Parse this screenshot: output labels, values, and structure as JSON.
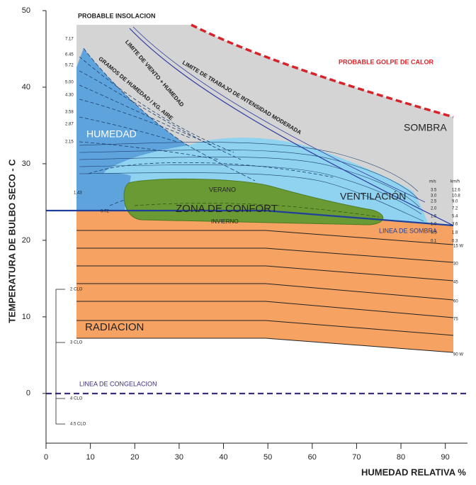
{
  "chart_data": {
    "type": "bioclimatic",
    "xlabel": "HUMEDAD RELATIVA %",
    "ylabel": "TEMPERATURA DE BULBO SECO - C",
    "xlim": [
      0,
      95
    ],
    "xticks": [
      0,
      10,
      20,
      30,
      40,
      50,
      60,
      70,
      80,
      90
    ],
    "ylim": [
      -6.5,
      50
    ],
    "yticks": [
      0,
      10,
      20,
      30,
      40,
      50
    ],
    "annotations": {
      "insolacion": "PROBABLE INSOLACION",
      "golpe_calor": "PROBABLE GOLPE DE CALOR",
      "limite_viento": "LIMITE DE VIENTO + HUMEDAD",
      "limite_trabajo": "LIMITE DE TRABAJO DE INTENSIDAD MODERADA",
      "gramos": "GRAMOS DE HUMEDAD / KG. AIRE",
      "humedad": "HUMEDAD",
      "sombra": "SOMBRA",
      "verano": "VERANO",
      "confort": "ZONA DE CONFORT",
      "invierno": "INVIERNO",
      "ventilacion": "VENTILACIÓN",
      "linea_sombra": "LINEA DE SOMBRA",
      "radiacion": "RADIACION",
      "congelacion": "LINEA DE CONGELACION"
    },
    "humidity_labels": [
      "7.17",
      "6.45",
      "5.72",
      "5.00",
      "4.30",
      "3.58",
      "2.87",
      "2.15",
      "1.43",
      "0.72"
    ],
    "wind_headers": [
      "m/s",
      "km/h"
    ],
    "wind_ms": [
      "3.5",
      "3.0",
      "2.5",
      "2.0",
      "1.5",
      "1.0",
      "0.5",
      "0.1"
    ],
    "wind_kmh": [
      "12.6",
      "10.8",
      "9.0",
      "7.2",
      "5.4",
      "3.6",
      "1.8",
      "0.3"
    ],
    "radiation_labels": [
      "15 W",
      "30",
      "45",
      "60",
      "75",
      "90 W"
    ],
    "clo_labels": [
      "2 CLO",
      "3 CLO",
      "4 CLO",
      "4.5 CLO"
    ]
  }
}
